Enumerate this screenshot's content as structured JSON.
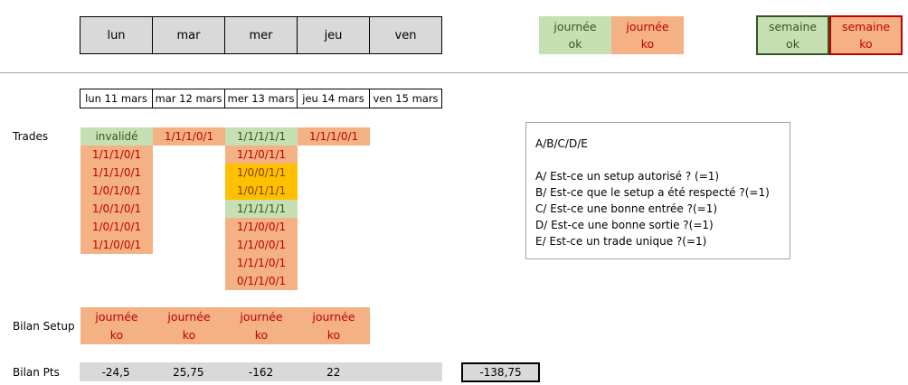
{
  "header": {
    "days": [
      "lun",
      "mar",
      "mer",
      "jeu",
      "ven"
    ]
  },
  "legend": {
    "day_ok": [
      "journée",
      "ok"
    ],
    "day_ko": [
      "journée",
      "ko"
    ],
    "week_ok": [
      "semaine",
      "ok"
    ],
    "week_ko": [
      "semaine",
      "ko"
    ]
  },
  "dates": [
    "lun 11 mars",
    "mar 12 mars",
    "mer 13 mars",
    "jeu 14 mars",
    "ven 15 mars"
  ],
  "labels": {
    "trades": "Trades",
    "bilan_setup": "Bilan Setup",
    "bilan_pts": "Bilan Pts"
  },
  "trades": {
    "lun": [
      "invalidé",
      "1/1/1/0/1",
      "1/1/1/0/1",
      "1/0/1/0/1",
      "1/0/1/0/1",
      "1/0/1/0/1",
      "1/1/0/0/1"
    ],
    "mar": [
      "1/1/1/0/1"
    ],
    "mer": [
      "1/1/1/1/1",
      "1/1/0/1/1",
      "1/0/0/1/1",
      "1/0/1/1/1",
      "1/1/1/1/1",
      "1/1/0/0/1",
      "1/1/0/0/1",
      "1/1/1/0/1",
      "0/1/1/0/1"
    ],
    "jeu": [
      "1/1/1/0/1"
    ]
  },
  "trade_status": {
    "lun": [
      "ok",
      "ko",
      "ko",
      "ko",
      "ko",
      "ko",
      "ko"
    ],
    "mar": [
      "ko"
    ],
    "mer": [
      "ok",
      "ko",
      "mid",
      "mid",
      "ok",
      "ko",
      "ko",
      "ko",
      "ko"
    ],
    "jeu": [
      "ko"
    ]
  },
  "bilan_setup": [
    [
      "journée",
      "ko"
    ],
    [
      "journée",
      "ko"
    ],
    [
      "journée",
      "ko"
    ],
    [
      "journée",
      "ko"
    ]
  ],
  "bilan_pts": [
    "-24,5",
    "25,75",
    "-162",
    "22",
    ""
  ],
  "bilan_total": "-138,75",
  "info": {
    "title": "A/B/C/D/E",
    "lines": [
      "A/ Est-ce un setup autorisé ? (=1)",
      "B/ Est-ce que le setup a été respecté ?(=1)",
      "C/ Est-ce une bonne entrée ?(=1)",
      "D/ Est-ce une bonne sortie ?(=1)",
      "E/ Est-ce un trade unique ?(=1)"
    ]
  },
  "colors": {
    "ok_fill": "#c6e0b4",
    "ko_fill": "#f4b183",
    "mid_fill": "#ffc000",
    "ko_text": "#c00000",
    "ok_text": "#375623"
  }
}
